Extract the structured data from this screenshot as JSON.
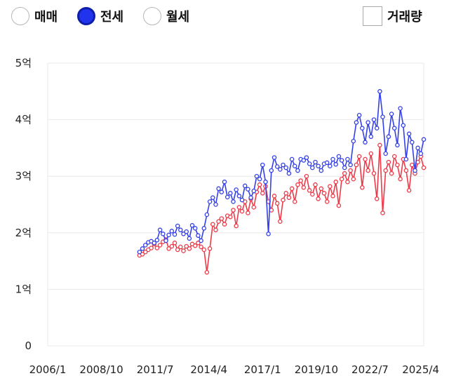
{
  "controls": {
    "radios": [
      {
        "label": "매매",
        "checked": false
      },
      {
        "label": "전세",
        "checked": true
      },
      {
        "label": "월세",
        "checked": false
      }
    ],
    "volume_label": "거래량",
    "volume_checked": false
  },
  "chart_data": {
    "type": "line",
    "title": "",
    "xlabel": "",
    "ylabel": "",
    "x_tick_labels": [
      "2006/1",
      "2008/10",
      "2011/7",
      "2014/4",
      "2017/1",
      "2019/10",
      "2022/7",
      "2025/4"
    ],
    "x_ticks": [
      2006.0,
      2008.75,
      2011.5,
      2014.25,
      2017.0,
      2019.75,
      2022.5,
      2025.25
    ],
    "xlim": [
      2006.0,
      2025.25
    ],
    "y_tick_labels": [
      "0",
      "1억",
      "2억",
      "3억",
      "4억",
      "5억"
    ],
    "y_ticks": [
      0,
      1,
      2,
      3,
      4,
      5
    ],
    "ylim": [
      0,
      5
    ],
    "y_unit": "억",
    "grid": true,
    "colors": {
      "blue": "#3440e8",
      "red": "#ec3a48",
      "grid": "#e8e8e8"
    },
    "series": [
      {
        "color": "#3440e8",
        "points": [
          [
            2010.7,
            1.66
          ],
          [
            2010.85,
            1.72
          ],
          [
            2011.0,
            1.78
          ],
          [
            2011.15,
            1.83
          ],
          [
            2011.3,
            1.85
          ],
          [
            2011.45,
            1.82
          ],
          [
            2011.6,
            1.87
          ],
          [
            2011.75,
            2.05
          ],
          [
            2011.9,
            1.98
          ],
          [
            2012.05,
            1.86
          ],
          [
            2012.2,
            1.96
          ],
          [
            2012.35,
            2.03
          ],
          [
            2012.5,
            1.97
          ],
          [
            2012.65,
            2.12
          ],
          [
            2012.8,
            2.05
          ],
          [
            2012.95,
            1.98
          ],
          [
            2013.1,
            2.02
          ],
          [
            2013.25,
            1.9
          ],
          [
            2013.4,
            2.13
          ],
          [
            2013.55,
            2.08
          ],
          [
            2013.7,
            1.95
          ],
          [
            2013.85,
            1.86
          ],
          [
            2014.0,
            2.08
          ],
          [
            2014.15,
            2.32
          ],
          [
            2014.3,
            2.55
          ],
          [
            2014.45,
            2.62
          ],
          [
            2014.6,
            2.5
          ],
          [
            2014.75,
            2.78
          ],
          [
            2014.9,
            2.72
          ],
          [
            2015.05,
            2.9
          ],
          [
            2015.2,
            2.63
          ],
          [
            2015.35,
            2.7
          ],
          [
            2015.5,
            2.55
          ],
          [
            2015.65,
            2.76
          ],
          [
            2015.8,
            2.65
          ],
          [
            2015.95,
            2.58
          ],
          [
            2016.1,
            2.83
          ],
          [
            2016.25,
            2.77
          ],
          [
            2016.4,
            2.62
          ],
          [
            2016.55,
            2.74
          ],
          [
            2016.7,
            3.0
          ],
          [
            2016.85,
            2.95
          ],
          [
            2017.0,
            3.2
          ],
          [
            2017.15,
            2.9
          ],
          [
            2017.3,
            1.98
          ],
          [
            2017.45,
            3.1
          ],
          [
            2017.6,
            3.33
          ],
          [
            2017.75,
            3.17
          ],
          [
            2017.9,
            3.12
          ],
          [
            2018.05,
            3.2
          ],
          [
            2018.2,
            3.15
          ],
          [
            2018.35,
            3.05
          ],
          [
            2018.5,
            3.3
          ],
          [
            2018.65,
            3.18
          ],
          [
            2018.8,
            3.1
          ],
          [
            2018.95,
            3.3
          ],
          [
            2019.1,
            3.28
          ],
          [
            2019.25,
            3.33
          ],
          [
            2019.4,
            3.22
          ],
          [
            2019.55,
            3.15
          ],
          [
            2019.7,
            3.25
          ],
          [
            2019.85,
            3.18
          ],
          [
            2020.0,
            3.1
          ],
          [
            2020.15,
            3.22
          ],
          [
            2020.3,
            3.24
          ],
          [
            2020.45,
            3.18
          ],
          [
            2020.6,
            3.3
          ],
          [
            2020.75,
            3.21
          ],
          [
            2020.9,
            3.35
          ],
          [
            2021.05,
            3.28
          ],
          [
            2021.2,
            3.15
          ],
          [
            2021.35,
            3.3
          ],
          [
            2021.5,
            3.2
          ],
          [
            2021.65,
            3.62
          ],
          [
            2021.8,
            3.95
          ],
          [
            2021.95,
            4.08
          ],
          [
            2022.1,
            3.85
          ],
          [
            2022.25,
            3.6
          ],
          [
            2022.4,
            3.95
          ],
          [
            2022.55,
            3.7
          ],
          [
            2022.7,
            4.0
          ],
          [
            2022.85,
            3.85
          ],
          [
            2023.0,
            4.5
          ],
          [
            2023.15,
            4.05
          ],
          [
            2023.3,
            3.4
          ],
          [
            2023.45,
            3.7
          ],
          [
            2023.6,
            4.1
          ],
          [
            2023.75,
            3.85
          ],
          [
            2023.9,
            3.55
          ],
          [
            2024.05,
            4.2
          ],
          [
            2024.2,
            3.9
          ],
          [
            2024.35,
            3.3
          ],
          [
            2024.5,
            3.75
          ],
          [
            2024.65,
            3.6
          ],
          [
            2024.8,
            3.1
          ],
          [
            2024.95,
            3.5
          ],
          [
            2025.1,
            3.4
          ],
          [
            2025.25,
            3.65
          ]
        ]
      },
      {
        "color": "#ec3a48",
        "points": [
          [
            2010.7,
            1.6
          ],
          [
            2010.85,
            1.62
          ],
          [
            2011.0,
            1.66
          ],
          [
            2011.15,
            1.7
          ],
          [
            2011.3,
            1.73
          ],
          [
            2011.45,
            1.8
          ],
          [
            2011.6,
            1.73
          ],
          [
            2011.75,
            1.78
          ],
          [
            2011.9,
            1.84
          ],
          [
            2012.05,
            1.88
          ],
          [
            2012.2,
            1.72
          ],
          [
            2012.35,
            1.76
          ],
          [
            2012.5,
            1.82
          ],
          [
            2012.65,
            1.7
          ],
          [
            2012.8,
            1.75
          ],
          [
            2012.95,
            1.68
          ],
          [
            2013.1,
            1.76
          ],
          [
            2013.25,
            1.72
          ],
          [
            2013.4,
            1.8
          ],
          [
            2013.55,
            1.77
          ],
          [
            2013.7,
            1.82
          ],
          [
            2013.85,
            1.75
          ],
          [
            2014.0,
            1.7
          ],
          [
            2014.15,
            1.3
          ],
          [
            2014.3,
            1.72
          ],
          [
            2014.45,
            2.15
          ],
          [
            2014.6,
            2.05
          ],
          [
            2014.75,
            2.2
          ],
          [
            2014.9,
            2.25
          ],
          [
            2015.05,
            2.15
          ],
          [
            2015.2,
            2.3
          ],
          [
            2015.35,
            2.28
          ],
          [
            2015.5,
            2.4
          ],
          [
            2015.65,
            2.12
          ],
          [
            2015.8,
            2.45
          ],
          [
            2015.95,
            2.38
          ],
          [
            2016.1,
            2.55
          ],
          [
            2016.25,
            2.35
          ],
          [
            2016.4,
            2.6
          ],
          [
            2016.55,
            2.45
          ],
          [
            2016.7,
            2.72
          ],
          [
            2016.85,
            2.85
          ],
          [
            2017.0,
            2.7
          ],
          [
            2017.15,
            2.82
          ],
          [
            2017.3,
            2.55
          ],
          [
            2017.45,
            2.4
          ],
          [
            2017.6,
            2.65
          ],
          [
            2017.75,
            2.52
          ],
          [
            2017.9,
            2.2
          ],
          [
            2018.05,
            2.58
          ],
          [
            2018.2,
            2.7
          ],
          [
            2018.35,
            2.62
          ],
          [
            2018.5,
            2.78
          ],
          [
            2018.65,
            2.55
          ],
          [
            2018.8,
            2.85
          ],
          [
            2018.95,
            2.92
          ],
          [
            2019.1,
            2.8
          ],
          [
            2019.25,
            3.0
          ],
          [
            2019.4,
            2.75
          ],
          [
            2019.55,
            2.68
          ],
          [
            2019.7,
            2.85
          ],
          [
            2019.85,
            2.6
          ],
          [
            2020.0,
            2.78
          ],
          [
            2020.15,
            2.7
          ],
          [
            2020.3,
            2.55
          ],
          [
            2020.45,
            2.82
          ],
          [
            2020.6,
            2.65
          ],
          [
            2020.75,
            2.9
          ],
          [
            2020.9,
            2.48
          ],
          [
            2021.05,
            2.95
          ],
          [
            2021.2,
            3.05
          ],
          [
            2021.35,
            2.9
          ],
          [
            2021.5,
            3.1
          ],
          [
            2021.65,
            2.95
          ],
          [
            2021.8,
            3.2
          ],
          [
            2021.95,
            3.35
          ],
          [
            2022.1,
            2.8
          ],
          [
            2022.25,
            3.3
          ],
          [
            2022.4,
            3.1
          ],
          [
            2022.55,
            3.4
          ],
          [
            2022.7,
            3.05
          ],
          [
            2022.85,
            2.6
          ],
          [
            2023.0,
            3.55
          ],
          [
            2023.15,
            2.35
          ],
          [
            2023.3,
            3.1
          ],
          [
            2023.45,
            3.25
          ],
          [
            2023.6,
            3.05
          ],
          [
            2023.75,
            3.35
          ],
          [
            2023.9,
            3.2
          ],
          [
            2024.05,
            2.95
          ],
          [
            2024.2,
            3.3
          ],
          [
            2024.35,
            3.1
          ],
          [
            2024.5,
            2.75
          ],
          [
            2024.65,
            3.2
          ],
          [
            2024.8,
            3.05
          ],
          [
            2024.95,
            3.25
          ],
          [
            2025.1,
            3.35
          ],
          [
            2025.25,
            3.15
          ]
        ]
      }
    ]
  }
}
